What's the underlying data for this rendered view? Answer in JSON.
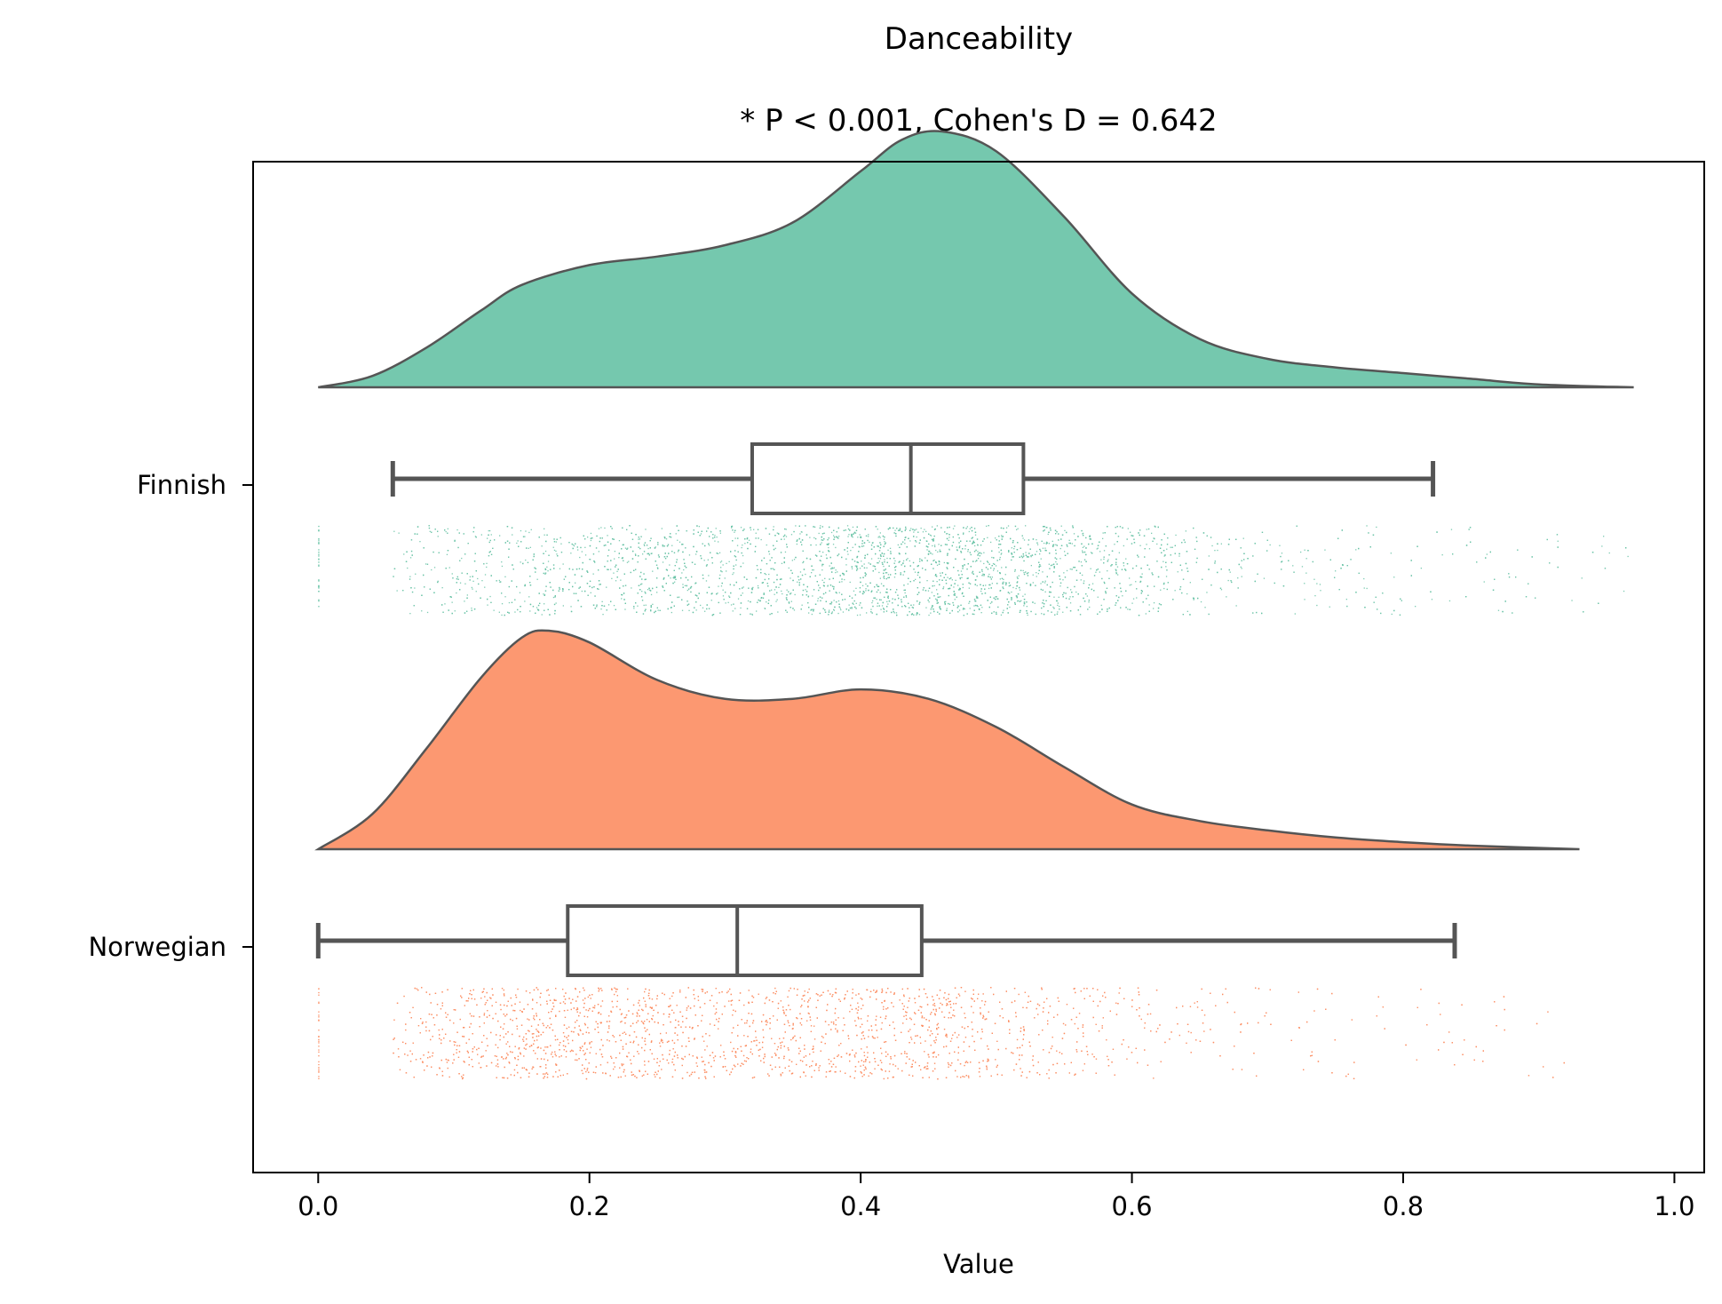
{
  "chart_data": {
    "type": "raincloud",
    "title": "Danceability",
    "subtitle": "* P < 0.001, Cohen's D = 0.642",
    "xlabel": "Value",
    "ylabel": "",
    "xlim": [
      -0.048,
      1.022
    ],
    "xticks": [
      0.0,
      0.2,
      0.4,
      0.6,
      0.8,
      1.0
    ],
    "xtick_labels": [
      "0.0",
      "0.2",
      "0.4",
      "0.6",
      "0.8",
      "1.0"
    ],
    "grid": false,
    "series": [
      {
        "name": "Finnish",
        "color": "#66c2a5",
        "density": {
          "x": [
            0.0,
            0.04,
            0.08,
            0.12,
            0.15,
            0.2,
            0.25,
            0.3,
            0.35,
            0.4,
            0.43,
            0.46,
            0.5,
            0.55,
            0.6,
            0.65,
            0.7,
            0.75,
            0.8,
            0.85,
            0.9,
            0.97
          ],
          "y": [
            0.0,
            0.04,
            0.14,
            0.27,
            0.36,
            0.43,
            0.46,
            0.5,
            0.58,
            0.76,
            0.87,
            0.9,
            0.83,
            0.6,
            0.33,
            0.17,
            0.1,
            0.07,
            0.05,
            0.03,
            0.01,
            0.0
          ]
        },
        "box": {
          "whisker_low": 0.055,
          "q1": 0.32,
          "median": 0.437,
          "q3": 0.52,
          "whisker_high": 0.822
        },
        "strip": {
          "min": 0.0,
          "max": 0.972,
          "dense_range": [
            0.055,
            0.82
          ],
          "peak": 0.46
        }
      },
      {
        "name": "Norwegian",
        "color": "#fc8d62",
        "density": {
          "x": [
            0.0,
            0.04,
            0.08,
            0.12,
            0.15,
            0.17,
            0.2,
            0.25,
            0.3,
            0.35,
            0.4,
            0.45,
            0.5,
            0.55,
            0.6,
            0.65,
            0.7,
            0.75,
            0.8,
            0.85,
            0.93
          ],
          "y": [
            0.0,
            0.15,
            0.43,
            0.73,
            0.9,
            0.93,
            0.88,
            0.72,
            0.64,
            0.64,
            0.68,
            0.64,
            0.52,
            0.35,
            0.19,
            0.12,
            0.08,
            0.05,
            0.03,
            0.015,
            0.0
          ]
        },
        "box": {
          "whisker_low": 0.0,
          "q1": 0.184,
          "median": 0.309,
          "q3": 0.445,
          "whisker_high": 0.838
        },
        "strip": {
          "min": 0.0,
          "max": 0.93,
          "dense_range": [
            0.055,
            0.56
          ],
          "peak": 0.17
        }
      }
    ]
  }
}
